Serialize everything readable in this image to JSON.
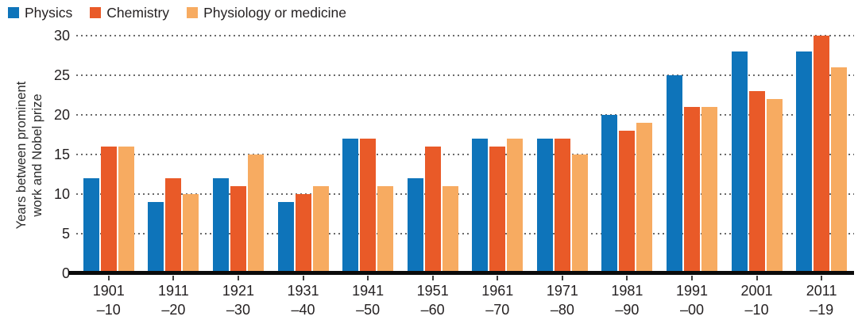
{
  "chart_data": {
    "type": "bar",
    "title": "",
    "ylabel": "Years between prominent work and Nobel prize",
    "ylabel_lines": [
      "Years between prominent",
      "work and Nobel prize"
    ],
    "xlabel": "",
    "ylim": [
      0,
      30
    ],
    "yticks": [
      0,
      5,
      10,
      15,
      20,
      25,
      30
    ],
    "grid": "horizontal-dotted",
    "legend_position": "top-left",
    "categories": [
      {
        "top": "1901",
        "bottom": "–10"
      },
      {
        "top": "1911",
        "bottom": "–20"
      },
      {
        "top": "1921",
        "bottom": "–30"
      },
      {
        "top": "1931",
        "bottom": "–40"
      },
      {
        "top": "1941",
        "bottom": "–50"
      },
      {
        "top": "1951",
        "bottom": "–60"
      },
      {
        "top": "1961",
        "bottom": "–70"
      },
      {
        "top": "1971",
        "bottom": "–80"
      },
      {
        "top": "1981",
        "bottom": "–90"
      },
      {
        "top": "1991",
        "bottom": "–00"
      },
      {
        "top": "2001",
        "bottom": "–10"
      },
      {
        "top": "2011",
        "bottom": "–19"
      }
    ],
    "series": [
      {
        "name": "Physics",
        "color": "#0e74ba",
        "values": [
          12,
          9,
          12,
          9,
          17,
          12,
          17,
          17,
          20,
          25,
          28,
          28
        ]
      },
      {
        "name": "Chemistry",
        "color": "#e95a28",
        "values": [
          16,
          12,
          11,
          10,
          17,
          16,
          16,
          17,
          18,
          21,
          23,
          30
        ]
      },
      {
        "name": "Physiology or medicine",
        "color": "#f7ab61",
        "values": [
          16,
          10,
          15,
          11,
          11,
          11,
          17,
          15,
          19,
          21,
          22,
          26
        ]
      }
    ],
    "colors": {
      "axis": "#0b0b0b",
      "grid_dots": "#6a6a6a",
      "text": "#231f20"
    }
  }
}
